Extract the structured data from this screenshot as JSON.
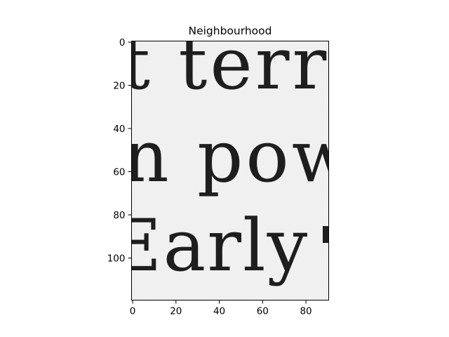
{
  "chart_data": {
    "type": "image",
    "title": "Neighbourhood",
    "xlabel": "",
    "ylabel": "",
    "xlim": [
      -0.5,
      90.5
    ],
    "ylim": [
      119.5,
      -0.5
    ],
    "x_ticks": [
      0,
      20,
      40,
      60,
      80
    ],
    "y_ticks": [
      0,
      20,
      40,
      60,
      80,
      100
    ],
    "y_axis_inverted": true,
    "grid": false,
    "image_text_lines": [
      "t terr",
      "n pow",
      "Early"
    ],
    "colors": {
      "paper": "#f1f1f1",
      "ink": "#1e1e1e",
      "axes": "#000000"
    }
  }
}
